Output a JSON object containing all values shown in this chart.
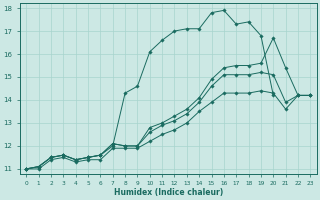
{
  "xlabel": "Humidex (Indice chaleur)",
  "background_color": "#cce8e4",
  "grid_color": "#a8d4ce",
  "line_color": "#1a6b60",
  "xlim": [
    -0.5,
    23.5
  ],
  "ylim": [
    10.8,
    18.2
  ],
  "yticks": [
    11,
    12,
    13,
    14,
    15,
    16,
    17,
    18
  ],
  "xticks": [
    0,
    1,
    2,
    3,
    4,
    5,
    6,
    7,
    8,
    9,
    10,
    11,
    12,
    13,
    14,
    15,
    16,
    17,
    18,
    19,
    20,
    21,
    22,
    23
  ],
  "line1_x": [
    0,
    1,
    2,
    3,
    4,
    5,
    6,
    7,
    8,
    9,
    10,
    11,
    12,
    13,
    14,
    15,
    16,
    17,
    18,
    19,
    20
  ],
  "line1_y": [
    11.0,
    11.1,
    11.5,
    11.6,
    11.4,
    11.5,
    11.6,
    12.0,
    14.3,
    14.6,
    16.1,
    16.6,
    17.0,
    17.1,
    17.1,
    17.8,
    17.9,
    17.3,
    17.4,
    16.8,
    14.2
  ],
  "line2_x": [
    0,
    1,
    2,
    3,
    4,
    5,
    6,
    7,
    8,
    9,
    10,
    11,
    12,
    13,
    14,
    15,
    16,
    17,
    18,
    19,
    20,
    21,
    22,
    23
  ],
  "line2_y": [
    11.0,
    11.1,
    11.5,
    11.6,
    11.4,
    11.5,
    11.6,
    12.1,
    12.0,
    12.0,
    12.8,
    13.0,
    13.3,
    13.6,
    14.1,
    14.9,
    15.4,
    15.5,
    15.5,
    15.6,
    16.7,
    15.4,
    14.2,
    14.2
  ],
  "line3_x": [
    0,
    1,
    2,
    3,
    4,
    5,
    6,
    7,
    8,
    9,
    10,
    11,
    12,
    13,
    14,
    15,
    16,
    17,
    18,
    19,
    20,
    21,
    22,
    23
  ],
  "line3_y": [
    11.0,
    11.1,
    11.5,
    11.6,
    11.4,
    11.5,
    11.6,
    12.1,
    12.0,
    12.0,
    12.6,
    12.9,
    13.1,
    13.4,
    13.9,
    14.6,
    15.1,
    15.1,
    15.1,
    15.2,
    15.1,
    13.9,
    14.2,
    14.2
  ],
  "line4_x": [
    0,
    1,
    2,
    3,
    4,
    5,
    6,
    7,
    8,
    9,
    10,
    11,
    12,
    13,
    14,
    15,
    16,
    17,
    18,
    19,
    20,
    21,
    22,
    23
  ],
  "line4_y": [
    11.0,
    11.0,
    11.4,
    11.5,
    11.3,
    11.4,
    11.4,
    11.9,
    11.9,
    11.9,
    12.2,
    12.5,
    12.7,
    13.0,
    13.5,
    13.9,
    14.3,
    14.3,
    14.3,
    14.4,
    14.3,
    13.6,
    14.2,
    14.2
  ]
}
